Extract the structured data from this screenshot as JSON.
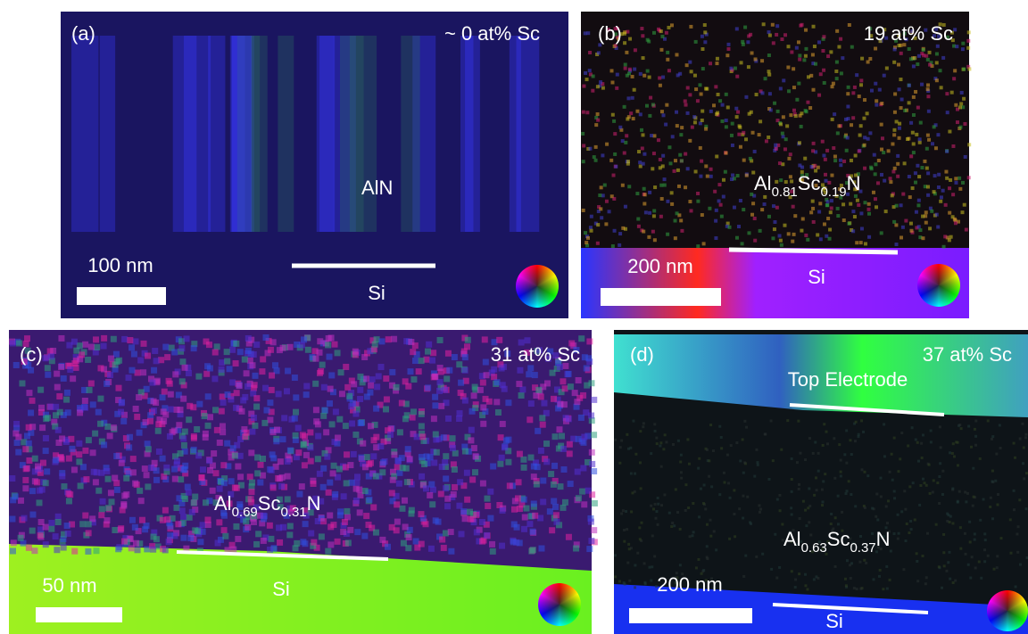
{
  "panels": [
    {
      "label": "(a)",
      "composition": "~ 0 at% Sc",
      "material": [
        "AlN"
      ],
      "substrate": "Si",
      "scale_bar": "100 nm"
    },
    {
      "label": "(b)",
      "composition": "19 at% Sc",
      "material": [
        "Al",
        "0.81",
        "Sc",
        "0.19",
        "N"
      ],
      "substrate": "Si",
      "scale_bar": "200 nm"
    },
    {
      "label": "(c)",
      "composition": "31 at% Sc",
      "material": [
        "Al",
        "0.69",
        "Sc",
        "0.31",
        "N"
      ],
      "substrate": "Si",
      "scale_bar": "50 nm"
    },
    {
      "label": "(d)",
      "composition": "37 at% Sc",
      "material": [
        "Al",
        "0.63",
        "Sc",
        "0.37",
        "N"
      ],
      "substrate": "Si",
      "scale_bar": "200 nm",
      "top_layer": "Top Electrode"
    }
  ]
}
